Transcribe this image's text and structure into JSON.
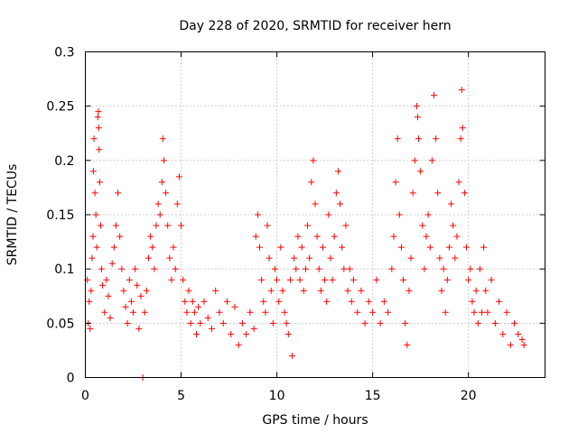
{
  "chart_data": {
    "type": "scatter",
    "title": "Day 228 of 2020, SRMTID for receiver hern",
    "xlabel": "GPS time / hours",
    "ylabel": "SRMTID / TECUs",
    "xlim": [
      0,
      24
    ],
    "ylim": [
      0,
      0.3
    ],
    "x_ticks": [
      "0",
      "5",
      "10",
      "15",
      "20"
    ],
    "x_tick_values": [
      0,
      5,
      10,
      15,
      20
    ],
    "y_ticks": [
      "0",
      "0.05",
      "0.1",
      "0.15",
      "0.2",
      "0.25",
      "0.3"
    ],
    "y_tick_values": [
      0,
      0.05,
      0.1,
      0.15,
      0.2,
      0.25,
      0.3
    ],
    "grid": true,
    "marker": "+",
    "color": "#ff0000",
    "series": [
      {
        "name": "SRMTID",
        "points": [
          [
            0.1,
            0.09
          ],
          [
            0.15,
            0.05
          ],
          [
            0.2,
            0.07
          ],
          [
            0.25,
            0.045
          ],
          [
            0.3,
            0.08
          ],
          [
            0.35,
            0.11
          ],
          [
            0.4,
            0.13
          ],
          [
            0.42,
            0.19
          ],
          [
            0.45,
            0.22
          ],
          [
            0.5,
            0.17
          ],
          [
            0.55,
            0.15
          ],
          [
            0.6,
            0.12
          ],
          [
            0.65,
            0.24
          ],
          [
            0.68,
            0.245
          ],
          [
            0.7,
            0.23
          ],
          [
            0.72,
            0.21
          ],
          [
            0.75,
            0.18
          ],
          [
            0.8,
            0.14
          ],
          [
            0.85,
            0.1
          ],
          [
            0.9,
            0.085
          ],
          [
            1.0,
            0.06
          ],
          [
            1.1,
            0.09
          ],
          [
            1.2,
            0.075
          ],
          [
            1.3,
            0.055
          ],
          [
            1.4,
            0.105
          ],
          [
            1.5,
            0.12
          ],
          [
            1.6,
            0.14
          ],
          [
            1.7,
            0.17
          ],
          [
            1.8,
            0.13
          ],
          [
            1.9,
            0.1
          ],
          [
            2.0,
            0.08
          ],
          [
            2.1,
            0.065
          ],
          [
            2.2,
            0.05
          ],
          [
            2.3,
            0.09
          ],
          [
            2.4,
            0.07
          ],
          [
            2.5,
            0.06
          ],
          [
            2.6,
            0.1
          ],
          [
            2.7,
            0.085
          ],
          [
            2.8,
            0.045
          ],
          [
            2.9,
            0.075
          ],
          [
            3.0,
            0.0
          ],
          [
            3.1,
            0.06
          ],
          [
            3.2,
            0.08
          ],
          [
            3.3,
            0.11
          ],
          [
            3.4,
            0.13
          ],
          [
            3.5,
            0.12
          ],
          [
            3.6,
            0.1
          ],
          [
            3.7,
            0.14
          ],
          [
            3.8,
            0.16
          ],
          [
            3.9,
            0.15
          ],
          [
            4.0,
            0.18
          ],
          [
            4.05,
            0.22
          ],
          [
            4.1,
            0.2
          ],
          [
            4.2,
            0.17
          ],
          [
            4.3,
            0.14
          ],
          [
            4.4,
            0.11
          ],
          [
            4.5,
            0.09
          ],
          [
            4.6,
            0.12
          ],
          [
            4.7,
            0.1
          ],
          [
            4.8,
            0.16
          ],
          [
            4.9,
            0.185
          ],
          [
            5.0,
            0.14
          ],
          [
            5.1,
            0.09
          ],
          [
            5.2,
            0.07
          ],
          [
            5.3,
            0.06
          ],
          [
            5.4,
            0.08
          ],
          [
            5.5,
            0.05
          ],
          [
            5.6,
            0.07
          ],
          [
            5.7,
            0.06
          ],
          [
            5.8,
            0.04
          ],
          [
            5.9,
            0.065
          ],
          [
            6.0,
            0.05
          ],
          [
            6.2,
            0.07
          ],
          [
            6.4,
            0.055
          ],
          [
            6.6,
            0.045
          ],
          [
            6.8,
            0.08
          ],
          [
            7.0,
            0.06
          ],
          [
            7.2,
            0.05
          ],
          [
            7.4,
            0.07
          ],
          [
            7.6,
            0.04
          ],
          [
            7.8,
            0.065
          ],
          [
            8.0,
            0.03
          ],
          [
            8.2,
            0.05
          ],
          [
            8.4,
            0.04
          ],
          [
            8.6,
            0.06
          ],
          [
            8.8,
            0.045
          ],
          [
            8.9,
            0.13
          ],
          [
            9.0,
            0.15
          ],
          [
            9.1,
            0.12
          ],
          [
            9.2,
            0.09
          ],
          [
            9.3,
            0.07
          ],
          [
            9.4,
            0.06
          ],
          [
            9.5,
            0.14
          ],
          [
            9.6,
            0.11
          ],
          [
            9.7,
            0.08
          ],
          [
            9.8,
            0.05
          ],
          [
            9.9,
            0.1
          ],
          [
            10.0,
            0.09
          ],
          [
            10.1,
            0.07
          ],
          [
            10.2,
            0.12
          ],
          [
            10.3,
            0.08
          ],
          [
            10.4,
            0.06
          ],
          [
            10.5,
            0.05
          ],
          [
            10.6,
            0.04
          ],
          [
            10.7,
            0.09
          ],
          [
            10.8,
            0.02
          ],
          [
            10.9,
            0.11
          ],
          [
            11.0,
            0.1
          ],
          [
            11.1,
            0.13
          ],
          [
            11.2,
            0.09
          ],
          [
            11.3,
            0.12
          ],
          [
            11.4,
            0.08
          ],
          [
            11.5,
            0.1
          ],
          [
            11.6,
            0.14
          ],
          [
            11.7,
            0.11
          ],
          [
            11.8,
            0.18
          ],
          [
            11.9,
            0.2
          ],
          [
            12.0,
            0.16
          ],
          [
            12.1,
            0.13
          ],
          [
            12.2,
            0.1
          ],
          [
            12.3,
            0.08
          ],
          [
            12.4,
            0.12
          ],
          [
            12.5,
            0.09
          ],
          [
            12.6,
            0.07
          ],
          [
            12.7,
            0.15
          ],
          [
            12.8,
            0.11
          ],
          [
            12.9,
            0.09
          ],
          [
            13.0,
            0.13
          ],
          [
            13.1,
            0.17
          ],
          [
            13.2,
            0.19
          ],
          [
            13.3,
            0.16
          ],
          [
            13.4,
            0.12
          ],
          [
            13.5,
            0.1
          ],
          [
            13.6,
            0.14
          ],
          [
            13.7,
            0.08
          ],
          [
            13.8,
            0.1
          ],
          [
            13.9,
            0.07
          ],
          [
            14.0,
            0.09
          ],
          [
            14.2,
            0.06
          ],
          [
            14.4,
            0.08
          ],
          [
            14.6,
            0.05
          ],
          [
            14.8,
            0.07
          ],
          [
            15.0,
            0.06
          ],
          [
            15.2,
            0.09
          ],
          [
            15.4,
            0.05
          ],
          [
            15.6,
            0.07
          ],
          [
            15.8,
            0.06
          ],
          [
            16.0,
            0.1
          ],
          [
            16.1,
            0.13
          ],
          [
            16.2,
            0.18
          ],
          [
            16.3,
            0.22
          ],
          [
            16.4,
            0.15
          ],
          [
            16.5,
            0.12
          ],
          [
            16.6,
            0.09
          ],
          [
            16.7,
            0.05
          ],
          [
            16.8,
            0.03
          ],
          [
            16.9,
            0.08
          ],
          [
            17.0,
            0.11
          ],
          [
            17.1,
            0.17
          ],
          [
            17.2,
            0.2
          ],
          [
            17.3,
            0.25
          ],
          [
            17.35,
            0.24
          ],
          [
            17.4,
            0.22
          ],
          [
            17.5,
            0.19
          ],
          [
            17.6,
            0.14
          ],
          [
            17.7,
            0.1
          ],
          [
            17.8,
            0.13
          ],
          [
            17.9,
            0.15
          ],
          [
            18.0,
            0.12
          ],
          [
            18.1,
            0.2
          ],
          [
            18.2,
            0.26
          ],
          [
            18.3,
            0.22
          ],
          [
            18.4,
            0.17
          ],
          [
            18.5,
            0.11
          ],
          [
            18.6,
            0.08
          ],
          [
            18.7,
            0.1
          ],
          [
            18.8,
            0.06
          ],
          [
            18.9,
            0.09
          ],
          [
            19.0,
            0.12
          ],
          [
            19.1,
            0.16
          ],
          [
            19.2,
            0.14
          ],
          [
            19.3,
            0.11
          ],
          [
            19.4,
            0.13
          ],
          [
            19.5,
            0.18
          ],
          [
            19.6,
            0.22
          ],
          [
            19.65,
            0.265
          ],
          [
            19.7,
            0.23
          ],
          [
            19.8,
            0.17
          ],
          [
            19.9,
            0.12
          ],
          [
            20.0,
            0.09
          ],
          [
            20.1,
            0.1
          ],
          [
            20.2,
            0.07
          ],
          [
            20.3,
            0.06
          ],
          [
            20.4,
            0.08
          ],
          [
            20.5,
            0.05
          ],
          [
            20.6,
            0.1
          ],
          [
            20.7,
            0.06
          ],
          [
            20.8,
            0.12
          ],
          [
            20.9,
            0.08
          ],
          [
            21.0,
            0.06
          ],
          [
            21.2,
            0.09
          ],
          [
            21.4,
            0.05
          ],
          [
            21.6,
            0.07
          ],
          [
            21.8,
            0.04
          ],
          [
            22.0,
            0.06
          ],
          [
            22.2,
            0.03
          ],
          [
            22.4,
            0.05
          ],
          [
            22.6,
            0.04
          ],
          [
            22.8,
            0.035
          ],
          [
            22.9,
            0.03
          ]
        ]
      }
    ]
  }
}
